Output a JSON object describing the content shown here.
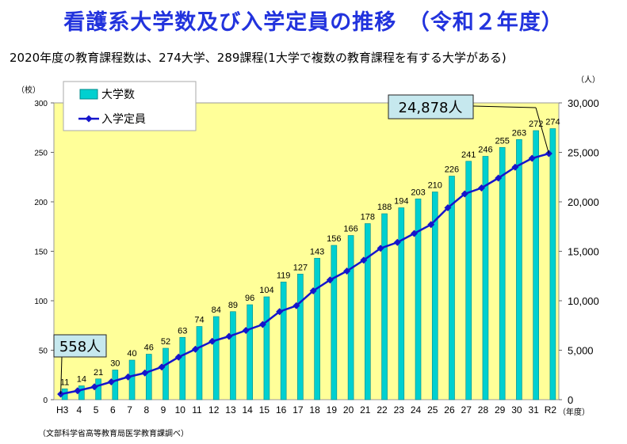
{
  "title": "看護系大学数及び入学定員の推移　（令和２年度）",
  "subtitle": "2020年度の教育課程数は、274大学、289課程(1大学で複数の教育課程を有する大学がある)",
  "source": "（文部科学省高等教育局医学教育課調べ）",
  "chart_data": {
    "type": "bar",
    "categories": [
      "H3",
      "4",
      "5",
      "6",
      "7",
      "8",
      "9",
      "10",
      "11",
      "12",
      "13",
      "14",
      "15",
      "16",
      "17",
      "18",
      "19",
      "20",
      "21",
      "22",
      "23",
      "24",
      "25",
      "26",
      "27",
      "28",
      "29",
      "30",
      "31",
      "R2"
    ],
    "x_unit": "（年度）",
    "left_axis": {
      "unit": "（校）",
      "range": [
        0,
        300
      ],
      "ticks": [
        0,
        50,
        100,
        150,
        200,
        250,
        300
      ]
    },
    "right_axis": {
      "unit": "（人）",
      "range": [
        0,
        30000
      ],
      "ticks": [
        "0",
        "5,000",
        "10,000",
        "15,000",
        "20,000",
        "25,000",
        "30,000"
      ],
      "tick_values": [
        0,
        5000,
        10000,
        15000,
        20000,
        25000,
        30000
      ]
    },
    "series": [
      {
        "name": "大学数",
        "type": "bar",
        "axis": "left",
        "color": "#00d0d0",
        "values": [
          11,
          14,
          21,
          30,
          40,
          46,
          52,
          63,
          74,
          84,
          89,
          96,
          104,
          119,
          127,
          143,
          156,
          166,
          178,
          188,
          194,
          203,
          210,
          226,
          241,
          246,
          255,
          263,
          272,
          274
        ]
      },
      {
        "name": "入学定員",
        "type": "line",
        "axis": "right",
        "color": "#1515cc",
        "values": [
          558,
          900,
          1300,
          1800,
          2300,
          2700,
          3300,
          4300,
          5100,
          5900,
          6400,
          7000,
          7600,
          8900,
          9500,
          11000,
          12100,
          13000,
          14100,
          15300,
          15900,
          16800,
          17700,
          19400,
          20800,
          21400,
          22400,
          23500,
          24400,
          24878
        ]
      }
    ],
    "callouts": [
      {
        "label": "24,878人",
        "target_index": 29
      },
      {
        "label": "558人",
        "target_index": 0
      }
    ],
    "plot_background": "#ffff99",
    "legend_position": "top-left",
    "grid": false
  }
}
